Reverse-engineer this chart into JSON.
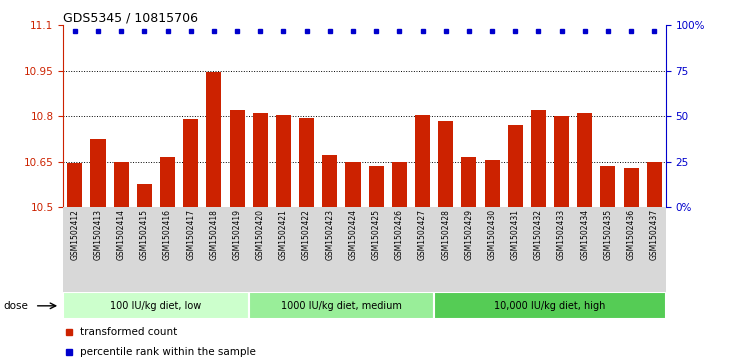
{
  "title": "GDS5345 / 10815706",
  "samples": [
    "GSM1502412",
    "GSM1502413",
    "GSM1502414",
    "GSM1502415",
    "GSM1502416",
    "GSM1502417",
    "GSM1502418",
    "GSM1502419",
    "GSM1502420",
    "GSM1502421",
    "GSM1502422",
    "GSM1502423",
    "GSM1502424",
    "GSM1502425",
    "GSM1502426",
    "GSM1502427",
    "GSM1502428",
    "GSM1502429",
    "GSM1502430",
    "GSM1502431",
    "GSM1502432",
    "GSM1502433",
    "GSM1502434",
    "GSM1502435",
    "GSM1502436",
    "GSM1502437"
  ],
  "bar_values": [
    10.645,
    10.725,
    10.648,
    10.575,
    10.665,
    10.79,
    10.945,
    10.82,
    10.81,
    10.805,
    10.795,
    10.67,
    10.648,
    10.635,
    10.648,
    10.805,
    10.785,
    10.665,
    10.655,
    10.77,
    10.82,
    10.8,
    10.81,
    10.635,
    10.63,
    10.648
  ],
  "percentile_values": [
    97,
    97,
    97,
    97,
    97,
    97,
    97,
    97,
    97,
    97,
    97,
    97,
    97,
    97,
    97,
    97,
    97,
    97,
    97,
    97,
    97,
    97,
    97,
    97,
    97,
    97
  ],
  "bar_color": "#cc2200",
  "dot_color": "#0000cc",
  "ylim_left": [
    10.5,
    11.1
  ],
  "ylim_right": [
    0,
    100
  ],
  "yticks_left": [
    10.5,
    10.65,
    10.8,
    10.95,
    11.1
  ],
  "yticks_right": [
    0,
    25,
    50,
    75,
    100
  ],
  "gridlines": [
    10.65,
    10.8,
    10.95
  ],
  "groups": [
    {
      "label": "100 IU/kg diet, low",
      "start": 0,
      "end": 7
    },
    {
      "label": "1000 IU/kg diet, medium",
      "start": 8,
      "end": 15
    },
    {
      "label": "10,000 IU/kg diet, high",
      "start": 16,
      "end": 25
    }
  ],
  "group_colors": [
    "#ccffcc",
    "#99ee99",
    "#55cc55"
  ],
  "legend_entries": [
    {
      "label": "transformed count",
      "color": "#cc2200"
    },
    {
      "label": "percentile rank within the sample",
      "color": "#0000cc"
    }
  ],
  "dose_label": "dose"
}
